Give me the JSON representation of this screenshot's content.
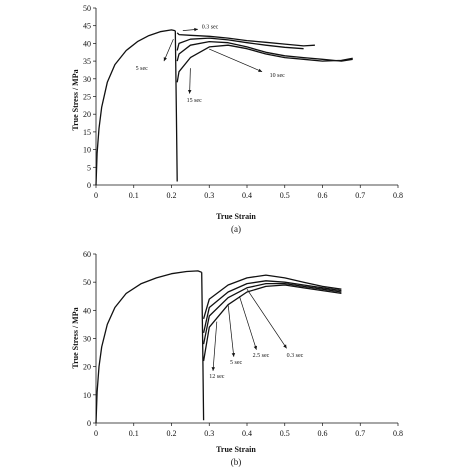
{
  "chart_data": [
    {
      "type": "line",
      "panel_label": "(a)",
      "xlabel": "True Strain",
      "ylabel": "True Stress / MPa",
      "xlim": [
        0,
        0.8
      ],
      "ylim": [
        0,
        50
      ],
      "xticks": [
        "0",
        "0.1",
        "0.2",
        "0.3",
        "0.4",
        "0.5",
        "0.6",
        "0.7",
        "0.8"
      ],
      "yticks": [
        "0",
        "5",
        "10",
        "15",
        "20",
        "25",
        "30",
        "35",
        "40",
        "45",
        "50"
      ],
      "grid": false,
      "first_loading": {
        "x": [
          0,
          0.003,
          0.008,
          0.015,
          0.03,
          0.05,
          0.08,
          0.11,
          0.14,
          0.17,
          0.2,
          0.21
        ],
        "y": [
          0,
          9,
          16,
          22,
          29,
          34,
          38,
          40.5,
          42.2,
          43.3,
          43.8,
          43.6
        ]
      },
      "unloading": {
        "x": [
          0.21,
          0.213,
          0.215
        ],
        "y": [
          43.6,
          20,
          1
        ]
      },
      "series": [
        {
          "name": "0.3 sec",
          "x": [
            0.215,
            0.22,
            0.25,
            0.3,
            0.35,
            0.4,
            0.45,
            0.5,
            0.55,
            0.58
          ],
          "y": [
            43,
            42.5,
            42.3,
            42,
            41.5,
            40.8,
            40.3,
            39.8,
            39.3,
            39.5
          ]
        },
        {
          "name": "5 sec",
          "x": [
            0.215,
            0.22,
            0.25,
            0.3,
            0.35,
            0.4,
            0.45,
            0.5,
            0.55
          ],
          "y": [
            38,
            40,
            41.2,
            41.5,
            41,
            40.2,
            39.5,
            38.9,
            38.5
          ]
        },
        {
          "name": "10 sec",
          "x": [
            0.215,
            0.22,
            0.25,
            0.3,
            0.35,
            0.4,
            0.45,
            0.5,
            0.55,
            0.6,
            0.65,
            0.68
          ],
          "y": [
            35,
            37,
            39.5,
            40.5,
            40.2,
            39,
            37.5,
            36.5,
            36,
            35.5,
            35,
            35.5
          ]
        },
        {
          "name": "15 sec",
          "x": [
            0.215,
            0.22,
            0.25,
            0.3,
            0.35,
            0.4,
            0.45,
            0.5,
            0.55,
            0.6,
            0.65,
            0.68
          ],
          "y": [
            29,
            32,
            36,
            39,
            39.5,
            38.5,
            37,
            36,
            35.5,
            35,
            35.2,
            35.8
          ]
        }
      ],
      "annotations": [
        {
          "text": "0.3 sec",
          "x": 0.28,
          "y": 44.2
        },
        {
          "text": "5 sec",
          "x": 0.105,
          "y": 32.5
        },
        {
          "text": "10 sec",
          "x": 0.46,
          "y": 30.5
        },
        {
          "text": "15 sec",
          "x": 0.24,
          "y": 23.5
        }
      ]
    },
    {
      "type": "line",
      "panel_label": "(b)",
      "xlabel": "True Strain",
      "ylabel": "True Stress / MPa",
      "xlim": [
        0,
        0.8
      ],
      "ylim": [
        0,
        60
      ],
      "xticks": [
        "0",
        "0.1",
        "0.2",
        "0.3",
        "0.4",
        "0.5",
        "0.6",
        "0.7",
        "0.8"
      ],
      "yticks": [
        "0",
        "10",
        "20",
        "30",
        "40",
        "50",
        "60"
      ],
      "grid": false,
      "first_loading": {
        "x": [
          0,
          0.003,
          0.008,
          0.015,
          0.03,
          0.05,
          0.08,
          0.12,
          0.16,
          0.2,
          0.24,
          0.27,
          0.28
        ],
        "y": [
          0,
          11,
          20,
          27,
          35,
          41,
          46,
          49.5,
          51.5,
          53,
          53.8,
          54,
          53.5
        ]
      },
      "unloading": {
        "x": [
          0.28,
          0.283,
          0.285
        ],
        "y": [
          53.5,
          25,
          1
        ]
      },
      "series": [
        {
          "name": "0.3 sec",
          "x": [
            0.285,
            0.3,
            0.35,
            0.4,
            0.45,
            0.5,
            0.55,
            0.6,
            0.65
          ],
          "y": [
            37,
            44,
            49,
            51.5,
            52.5,
            51.5,
            50,
            48.5,
            47.5
          ]
        },
        {
          "name": "2.5 sec",
          "x": [
            0.285,
            0.3,
            0.35,
            0.4,
            0.45,
            0.5,
            0.55,
            0.6,
            0.65
          ],
          "y": [
            32,
            41,
            46.5,
            49.5,
            50.5,
            50,
            49,
            48,
            47
          ]
        },
        {
          "name": "5 sec",
          "x": [
            0.285,
            0.3,
            0.35,
            0.4,
            0.45,
            0.5,
            0.55,
            0.6,
            0.65
          ],
          "y": [
            28,
            38,
            44.5,
            48,
            49.5,
            49.5,
            48.5,
            47.5,
            46.5
          ]
        },
        {
          "name": "12 sec",
          "x": [
            0.285,
            0.3,
            0.35,
            0.4,
            0.45,
            0.5,
            0.55,
            0.6,
            0.65
          ],
          "y": [
            22,
            34,
            42,
            46.5,
            48.5,
            49,
            48,
            47,
            46
          ]
        }
      ],
      "annotations": [
        {
          "text": "0.3 sec",
          "x": 0.505,
          "y": 23.5
        },
        {
          "text": "2.5 sec",
          "x": 0.415,
          "y": 23.5
        },
        {
          "text": "5 sec",
          "x": 0.355,
          "y": 21
        },
        {
          "text": "12 sec",
          "x": 0.3,
          "y": 16
        }
      ]
    }
  ]
}
